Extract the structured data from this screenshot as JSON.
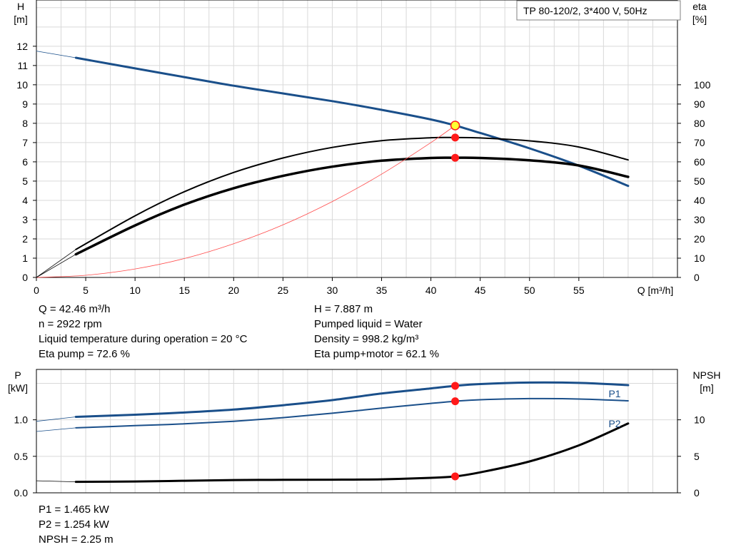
{
  "chart_data": [
    {
      "type": "line",
      "title": "TP 80-120/2, 3*400 V, 50Hz",
      "xlabel": "Q [m³/h]",
      "ylabel_left_name": "H",
      "ylabel_left_unit": "[m]",
      "ylabel_right_name": "eta",
      "ylabel_right_unit": "[%]",
      "xlim": [
        0,
        65
      ],
      "ylim_left": [
        0,
        14.4
      ],
      "ylim_right": [
        0,
        144
      ],
      "xticks": [
        0,
        5,
        10,
        15,
        20,
        25,
        30,
        35,
        40,
        45,
        50,
        55
      ],
      "yticks_left": [
        0,
        1,
        2,
        3,
        4,
        5,
        6,
        7,
        8,
        9,
        10,
        11,
        12
      ],
      "yticks_right": [
        0,
        10,
        20,
        30,
        40,
        50,
        60,
        70,
        80,
        90,
        100
      ],
      "grid": true,
      "series": [
        {
          "role": "head",
          "axis": "left",
          "color": "#1a4f8a",
          "x": [
            4,
            10,
            15,
            20,
            25,
            30,
            35,
            40,
            42.46,
            45,
            50,
            55,
            60
          ],
          "y": [
            11.4,
            10.85,
            10.4,
            9.95,
            9.55,
            9.15,
            8.7,
            8.2,
            7.887,
            7.5,
            6.7,
            5.8,
            4.75
          ]
        },
        {
          "role": "head-extension",
          "axis": "left",
          "color": "#1a4f8a",
          "x": [
            0,
            4
          ],
          "y": [
            11.75,
            11.4
          ]
        },
        {
          "role": "eta-pump",
          "axis": "right",
          "color": "#000000",
          "x": [
            4,
            10,
            15,
            20,
            25,
            30,
            35,
            40,
            42.46,
            45,
            50,
            55,
            60
          ],
          "y": [
            14.5,
            32,
            44.5,
            54.5,
            62,
            67.5,
            71,
            72.5,
            72.6,
            72.4,
            70.9,
            67.7,
            61
          ]
        },
        {
          "role": "eta-pump-motor",
          "axis": "right",
          "color": "#000000",
          "x": [
            4,
            10,
            15,
            20,
            25,
            30,
            35,
            40,
            42.46,
            45,
            50,
            55,
            60
          ],
          "y": [
            12,
            27,
            37.8,
            46.3,
            52.7,
            57.5,
            60.6,
            62,
            62.1,
            62,
            60.8,
            58.1,
            52.2
          ]
        },
        {
          "role": "system-curve",
          "axis": "left",
          "color": "#ff4a4a",
          "x": [
            0,
            5,
            10,
            15,
            20,
            25,
            30,
            35,
            40,
            42.46
          ],
          "y": [
            0,
            0.11,
            0.44,
            0.98,
            1.75,
            2.73,
            3.94,
            5.36,
            7.0,
            7.887
          ]
        }
      ],
      "operating_point": {
        "x": 42.46,
        "y": 7.887,
        "eta_pump": 72.6,
        "eta_pump_motor": 62.1
      }
    },
    {
      "type": "line",
      "xlabel": "",
      "ylabel_left_name": "P",
      "ylabel_left_unit": "[kW]",
      "ylabel_right_name": "NPSH",
      "ylabel_right_unit": "[m]",
      "xlim": [
        0,
        65
      ],
      "ylim_left": [
        0,
        1.69
      ],
      "ylim_right": [
        0,
        16.9
      ],
      "yticks_left": [
        "0.0",
        "0.5",
        "1.0"
      ],
      "yticks_right": [
        "0",
        "5",
        "10"
      ],
      "grid": true,
      "series": [
        {
          "name": "P1",
          "axis": "left",
          "color": "#1a4f8a",
          "x": [
            4,
            10,
            15,
            20,
            25,
            30,
            35,
            40,
            42.46,
            45,
            50,
            55,
            60
          ],
          "y": [
            1.04,
            1.07,
            1.1,
            1.14,
            1.2,
            1.27,
            1.36,
            1.43,
            1.465,
            1.49,
            1.51,
            1.505,
            1.475
          ]
        },
        {
          "name": "P2",
          "axis": "left",
          "color": "#1a4f8a",
          "x": [
            4,
            10,
            15,
            20,
            25,
            30,
            35,
            40,
            42.46,
            45,
            50,
            55,
            60
          ],
          "y": [
            0.89,
            0.92,
            0.945,
            0.98,
            1.03,
            1.09,
            1.16,
            1.225,
            1.254,
            1.275,
            1.29,
            1.285,
            1.26
          ]
        },
        {
          "name": "NPSH",
          "axis": "right",
          "color": "#000000",
          "x": [
            4,
            10,
            15,
            20,
            25,
            30,
            35,
            40,
            42.46,
            45,
            50,
            55,
            60
          ],
          "y": [
            1.5,
            1.55,
            1.65,
            1.75,
            1.78,
            1.8,
            1.85,
            2.05,
            2.25,
            2.8,
            4.3,
            6.5,
            9.5
          ]
        }
      ],
      "extensions": {
        "P1": {
          "x": [
            0,
            4
          ],
          "y": [
            0.98,
            1.04
          ]
        },
        "P2": {
          "x": [
            0,
            4
          ],
          "y": [
            0.84,
            0.89
          ]
        },
        "NPSH": {
          "x": [
            0,
            4
          ],
          "y": [
            1.65,
            1.5
          ]
        }
      },
      "operating_point": {
        "x": 42.46,
        "P1": 1.465,
        "P2": 1.254,
        "NPSH": 2.25
      }
    }
  ],
  "info_upper_left": [
    "Q = 42.46 m³/h",
    "n = 2922 rpm",
    "Liquid temperature during operation = 20 °C",
    "Eta pump = 72.6 %"
  ],
  "info_upper_right": [
    "H = 7.887 m",
    "Pumped liquid = Water",
    "Density = 998.2 kg/m³",
    "Eta pump+motor = 62.1 %"
  ],
  "info_lower": [
    "P1 = 1.465 kW",
    "P2 = 1.254 kW",
    "NPSH = 2.25 m"
  ],
  "colors": {
    "blue": "#1a4f8a",
    "red_point": "#ff1a1a",
    "op_fill": "#ffff33",
    "grid": "#d9d9d9"
  }
}
